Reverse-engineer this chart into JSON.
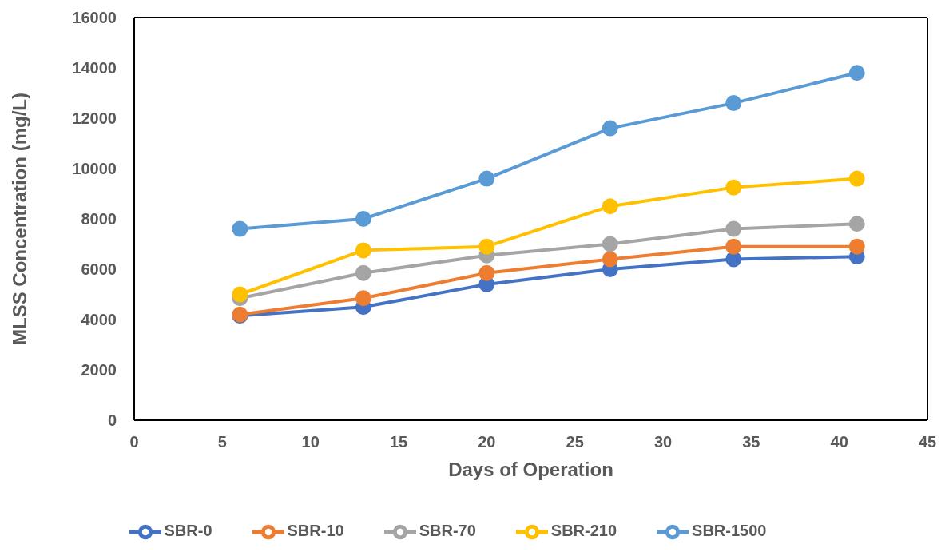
{
  "chart_data": {
    "type": "line",
    "xlabel": "Days of Operation",
    "ylabel": "MLSS Concentration  (mg/L)",
    "x": [
      6,
      13,
      20,
      27,
      34,
      41
    ],
    "series": [
      {
        "name": "SBR-0",
        "color": "#4472c4",
        "values": [
          4150,
          4500,
          5400,
          6000,
          6400,
          6500
        ]
      },
      {
        "name": "SBR-10",
        "color": "#ed7d31",
        "values": [
          4200,
          4850,
          5850,
          6400,
          6900,
          6900
        ]
      },
      {
        "name": "SBR-70",
        "color": "#a5a5a5",
        "values": [
          4850,
          5850,
          6550,
          7000,
          7600,
          7800
        ]
      },
      {
        "name": "SBR-210",
        "color": "#ffc000",
        "values": [
          5000,
          6750,
          6900,
          8500,
          9250,
          9600
        ]
      },
      {
        "name": "SBR-1500",
        "color": "#5b9bd5",
        "values": [
          7600,
          8000,
          9600,
          11600,
          12600,
          13800
        ]
      }
    ],
    "xlim": [
      0,
      45
    ],
    "xticks": [
      0,
      5,
      10,
      15,
      20,
      25,
      30,
      35,
      40,
      45
    ],
    "ylim": [
      0,
      16000
    ],
    "yticks": [
      0,
      2000,
      4000,
      6000,
      8000,
      10000,
      12000,
      14000,
      16000
    ],
    "grid": false,
    "legend": "bottom",
    "marker": "circle",
    "line_style": "solid"
  }
}
